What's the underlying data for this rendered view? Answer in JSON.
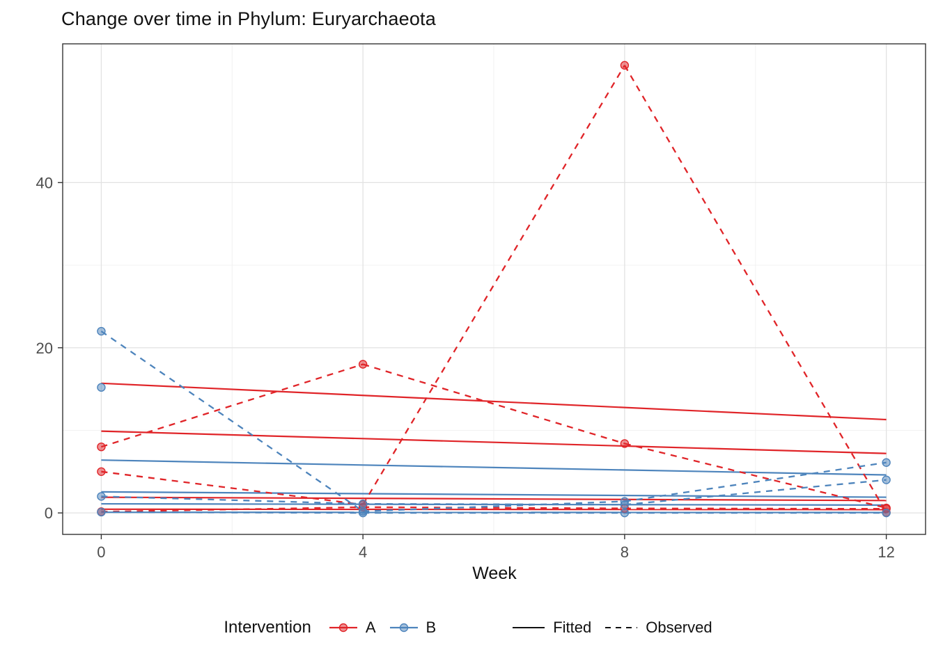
{
  "page": {
    "title": "Change over time in Phylum: Euryarchaeota"
  },
  "chart_data": {
    "type": "line",
    "title": "Change over time in Phylum: Euryarchaeota",
    "xlabel": "Week",
    "ylabel": "",
    "weeks": [
      0,
      4,
      8,
      12
    ],
    "x_ticks": [
      0,
      4,
      8,
      12
    ],
    "x_minor": [
      2,
      6,
      10
    ],
    "y_ticks": [
      0,
      20,
      40
    ],
    "y_minor": [
      10,
      30
    ],
    "xlim": [
      -0.59,
      12.6
    ],
    "ylim": [
      -2.6,
      56.8
    ],
    "grid": "on",
    "legend_position": "bottom",
    "colors": {
      "A": "#E02428",
      "B": "#4D84BC",
      "grid_major": "#E2E2E2",
      "grid_minor": "#F0F0F0",
      "panel_border": "#333333",
      "tick_text": "#4D4D4D"
    },
    "fitted": [
      {
        "group": "A",
        "start": 15.7,
        "end": 11.3
      },
      {
        "group": "A",
        "start": 9.9,
        "end": 7.2
      },
      {
        "group": "A",
        "start": 1.9,
        "end": 1.5
      },
      {
        "group": "A",
        "start": 0.45,
        "end": 0.4
      },
      {
        "group": "B",
        "start": 6.4,
        "end": 4.6
      },
      {
        "group": "B",
        "start": 2.55,
        "end": 1.9
      },
      {
        "group": "B",
        "start": 1.1,
        "end": 0.95
      },
      {
        "group": "B",
        "start": 0.08,
        "end": 0.05
      }
    ],
    "observed": [
      {
        "group": "A",
        "values": [
          8,
          18,
          8.4,
          0.6
        ]
      },
      {
        "group": "A",
        "values": [
          5,
          1,
          54.2,
          0.05
        ]
      },
      {
        "group": "A",
        "values": [
          0.15,
          0.7,
          0.55,
          0.5
        ]
      },
      {
        "group": "B",
        "values": [
          22,
          0.2,
          1.4,
          6.1
        ]
      },
      {
        "group": "B",
        "values": [
          15.2,
          null,
          null,
          null
        ]
      },
      {
        "group": "B",
        "values": [
          2,
          1.1,
          1.0,
          4.0
        ]
      },
      {
        "group": "B",
        "values": [
          0.1,
          0,
          0,
          0
        ]
      }
    ],
    "legend": {
      "title": "Intervention",
      "groups": [
        {
          "label": "A"
        },
        {
          "label": "B"
        }
      ],
      "linetypes": [
        {
          "label": "Fitted",
          "dash": "solid"
        },
        {
          "label": "Observed",
          "dash": "dashed"
        }
      ]
    }
  }
}
